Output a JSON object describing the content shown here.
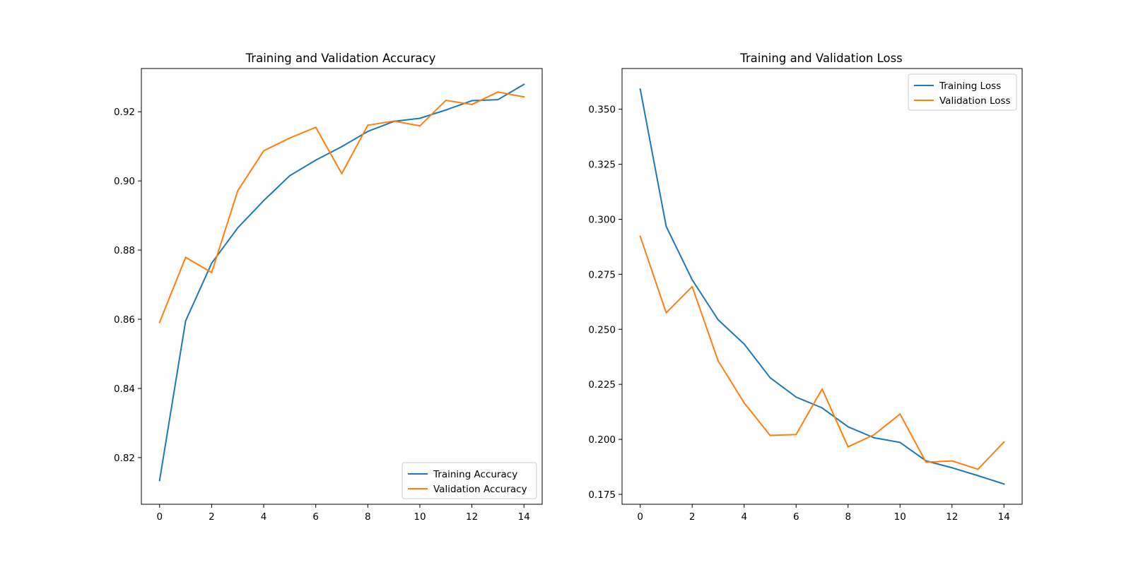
{
  "colors": {
    "series_1": "#1f77b4",
    "series_2": "#ff7f0e",
    "axes": "#000000",
    "legend_border": "#cccccc"
  },
  "chart_data": [
    {
      "type": "line",
      "title": "Training and Validation Accuracy",
      "xlabel": "",
      "ylabel": "",
      "x": [
        0,
        1,
        2,
        3,
        4,
        5,
        6,
        7,
        8,
        9,
        10,
        11,
        12,
        13,
        14
      ],
      "xlim": [
        -0.7,
        14.7
      ],
      "ylim": [
        0.8065,
        0.9325
      ],
      "xticks": [
        0,
        2,
        4,
        6,
        8,
        10,
        12,
        14
      ],
      "yticks": [
        0.82,
        0.84,
        0.86,
        0.88,
        0.9,
        0.92
      ],
      "ytick_labels": [
        "0.82",
        "0.84",
        "0.86",
        "0.88",
        "0.90",
        "0.92"
      ],
      "grid": false,
      "legend_position": "lower-right",
      "series": [
        {
          "name": "Training Accuracy",
          "color": "#1f77b4",
          "values": [
            0.8134,
            0.8595,
            0.8762,
            0.8864,
            0.8943,
            0.9015,
            0.906,
            0.9099,
            0.9143,
            0.9172,
            0.9181,
            0.9205,
            0.9232,
            0.9235,
            0.9279
          ]
        },
        {
          "name": "Validation Accuracy",
          "color": "#ff7f0e",
          "values": [
            0.8591,
            0.8779,
            0.8735,
            0.8971,
            0.9087,
            0.9124,
            0.9155,
            0.9021,
            0.9161,
            0.9173,
            0.9159,
            0.9233,
            0.9221,
            0.9257,
            0.9243
          ]
        }
      ]
    },
    {
      "type": "line",
      "title": "Training and Validation Loss",
      "xlabel": "",
      "ylabel": "",
      "x": [
        0,
        1,
        2,
        3,
        4,
        5,
        6,
        7,
        8,
        9,
        10,
        11,
        12,
        13,
        14
      ],
      "xlim": [
        -0.7,
        14.7
      ],
      "ylim": [
        0.1705,
        0.3685
      ],
      "xticks": [
        0,
        2,
        4,
        6,
        8,
        10,
        12,
        14
      ],
      "yticks": [
        0.175,
        0.2,
        0.225,
        0.25,
        0.275,
        0.3,
        0.325,
        0.35
      ],
      "ytick_labels": [
        "0.175",
        "0.200",
        "0.225",
        "0.250",
        "0.275",
        "0.300",
        "0.325",
        "0.350"
      ],
      "grid": false,
      "legend_position": "upper-right",
      "series": [
        {
          "name": "Training Loss",
          "color": "#1f77b4",
          "values": [
            0.3591,
            0.2967,
            0.2725,
            0.2543,
            0.2433,
            0.228,
            0.2192,
            0.2143,
            0.2057,
            0.2007,
            0.1986,
            0.1902,
            0.1871,
            0.1835,
            0.1797
          ]
        },
        {
          "name": "Validation Loss",
          "color": "#ff7f0e",
          "values": [
            0.2922,
            0.2575,
            0.2694,
            0.2356,
            0.2166,
            0.2018,
            0.2022,
            0.2229,
            0.1966,
            0.2021,
            0.2115,
            0.1896,
            0.1902,
            0.1864,
            0.1988
          ]
        }
      ]
    }
  ]
}
